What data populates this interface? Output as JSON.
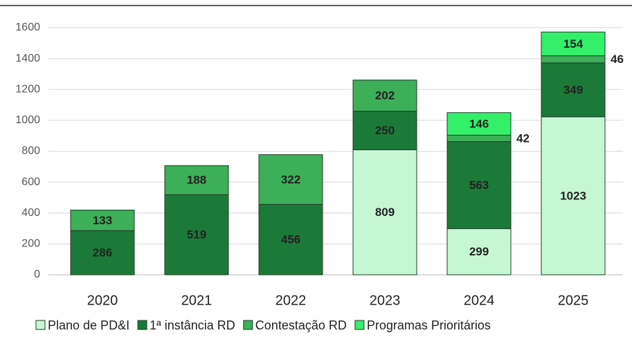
{
  "chart_data": {
    "type": "stacked_bar",
    "categories": [
      "2020",
      "2021",
      "2022",
      "2023",
      "2024",
      "2025"
    ],
    "series": [
      {
        "name": "Plano de PD&I",
        "color": "#c5f7d3",
        "label_color": "#111",
        "values": [
          null,
          null,
          null,
          809,
          299,
          1023
        ]
      },
      {
        "name": "1ª instância RD",
        "color": "#1b7a37",
        "label_color": "#fff",
        "values": [
          286,
          519,
          456,
          250,
          563,
          349
        ]
      },
      {
        "name": "Contestação RD",
        "color": "#3daf58",
        "label_color": "#111",
        "values": [
          133,
          188,
          322,
          202,
          42,
          46
        ]
      },
      {
        "name": "Programas Prioritários",
        "color": "#33ef6a",
        "label_color": "#111",
        "values": [
          null,
          null,
          null,
          null,
          146,
          154
        ]
      }
    ],
    "ylim": [
      0,
      1600
    ],
    "yticks": [
      0,
      200,
      400,
      600,
      800,
      1000,
      1200,
      1400,
      1600
    ],
    "grid": true,
    "legend": "bottom"
  }
}
